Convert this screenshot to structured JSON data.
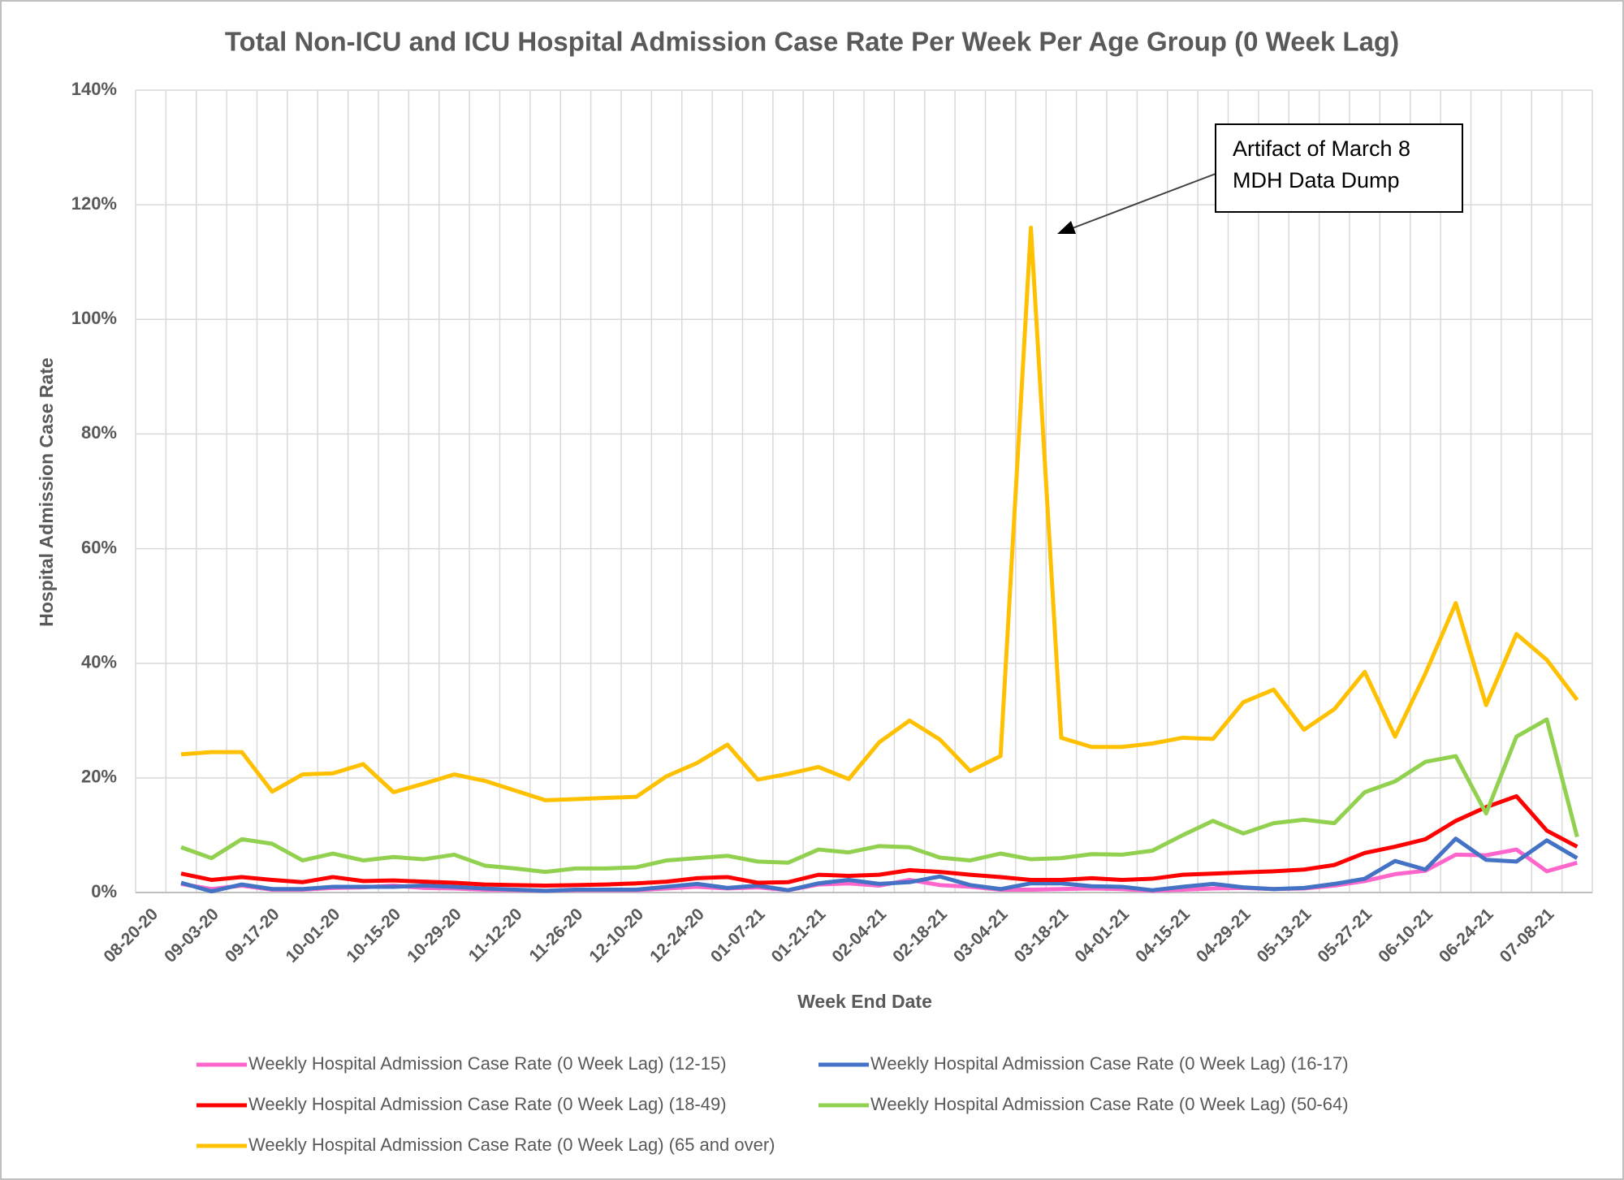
{
  "chart_data": {
    "type": "line",
    "title": "Total Non-ICU and ICU Hospital Admission Case Rate Per Week Per Age Group (0 Week Lag)",
    "xlabel": "Week End Date",
    "ylabel": "Hospital Admission Case Rate",
    "annotation": [
      "Artifact of March 8",
      "MDH Data Dump"
    ],
    "categories": [
      "08-20-20",
      null,
      "09-03-20",
      null,
      "09-17-20",
      null,
      "10-01-20",
      null,
      "10-15-20",
      null,
      "10-29-20",
      null,
      "11-12-20",
      null,
      "11-26-20",
      null,
      "12-10-20",
      null,
      "12-24-20",
      null,
      "01-07-21",
      null,
      "01-21-21",
      null,
      "02-04-21",
      null,
      "02-18-21",
      null,
      "03-04-21",
      null,
      "03-18-21",
      null,
      "04-01-21",
      null,
      "04-15-21",
      null,
      "04-29-21",
      null,
      "05-13-21",
      null,
      "05-27-21",
      null,
      "06-10-21",
      null,
      "06-24-21",
      null,
      "07-08-21",
      null
    ],
    "ylim": [
      0,
      140
    ],
    "yticks": [
      {
        "value": 0,
        "label": "0%"
      },
      {
        "value": 20,
        "label": "20%"
      },
      {
        "value": 40,
        "label": "40%"
      },
      {
        "value": 60,
        "label": "60%"
      },
      {
        "value": 80,
        "label": "80%"
      },
      {
        "value": 100,
        "label": "100%"
      },
      {
        "value": 120,
        "label": "120%"
      },
      {
        "value": 140,
        "label": "140%"
      }
    ],
    "grid": true,
    "legend": "bottom",
    "series": [
      {
        "name": "Weekly Hospital Admission Case Rate (0 Week Lag) (12-15)",
        "color": "#ff66cc",
        "values": [
          null,
          1.5,
          0.6,
          1.2,
          0.5,
          0.5,
          0.8,
          0.9,
          1.2,
          0.8,
          0.7,
          0.5,
          0.4,
          0.3,
          0.4,
          0.4,
          0.4,
          0.7,
          1,
          0.7,
          0.9,
          0.4,
          1.4,
          1.6,
          1.2,
          2.2,
          1.3,
          1,
          0.5,
          0.5,
          0.6,
          0.7,
          0.6,
          0.3,
          0.5,
          0.7,
          0.8,
          0.6,
          0.7,
          1.2,
          2,
          3.2,
          3.8,
          6.6,
          6.5,
          7.5,
          3.7,
          5.2
        ]
      },
      {
        "name": "Weekly Hospital Admission Case Rate (0 Week Lag) (16-17)",
        "color": "#4472c4",
        "values": [
          null,
          1.7,
          0.2,
          1.4,
          0.6,
          0.6,
          1,
          1,
          1,
          1.2,
          1,
          0.7,
          0.5,
          0.3,
          0.5,
          0.5,
          0.5,
          1,
          1.5,
          0.8,
          1.2,
          0.4,
          1.6,
          2.2,
          1.5,
          1.8,
          2.8,
          1.3,
          0.6,
          1.6,
          1.6,
          1.1,
          1,
          0.4,
          1,
          1.5,
          0.9,
          0.6,
          0.8,
          1.5,
          2.4,
          5.5,
          4,
          9.4,
          5.7,
          5.4,
          9.1,
          6
        ]
      },
      {
        "name": "Weekly Hospital Admission Case Rate (0 Week Lag) (18-49)",
        "color": "#ff0000",
        "values": [
          null,
          3.3,
          2.2,
          2.7,
          2.2,
          1.8,
          2.7,
          2,
          2.1,
          1.9,
          1.7,
          1.4,
          1.3,
          1.2,
          1.3,
          1.4,
          1.6,
          1.9,
          2.5,
          2.7,
          1.7,
          1.8,
          3.1,
          2.9,
          3.1,
          3.9,
          3.6,
          3.1,
          2.7,
          2.2,
          2.2,
          2.5,
          2.2,
          2.4,
          3.1,
          3.3,
          3.5,
          3.7,
          4,
          4.8,
          6.9,
          8,
          9.3,
          12.5,
          14.9,
          16.8,
          10.8,
          8
        ]
      },
      {
        "name": "Weekly Hospital Admission Case Rate (0 Week Lag) (50-64)",
        "color": "#92d050",
        "values": [
          null,
          7.9,
          6,
          9.3,
          8.5,
          5.6,
          6.8,
          5.6,
          6.2,
          5.8,
          6.6,
          4.7,
          4.2,
          3.6,
          4.2,
          4.2,
          4.4,
          5.6,
          6,
          6.4,
          5.4,
          5.2,
          7.5,
          7,
          8.1,
          7.9,
          6.1,
          5.6,
          6.8,
          5.8,
          6,
          6.7,
          6.6,
          7.3,
          10,
          12.5,
          10.3,
          12.1,
          12.7,
          12.1,
          17.5,
          19.4,
          22.8,
          23.8,
          13.8,
          27.2,
          30.2,
          9.7
        ]
      },
      {
        "name": "Weekly Hospital Admission Case Rate (0 Week Lag) (65 and over)",
        "color": "#ffc000",
        "values": [
          null,
          24.1,
          24.5,
          24.5,
          17.6,
          20.6,
          20.8,
          22.4,
          17.5,
          19,
          20.6,
          19.5,
          17.8,
          16.1,
          16.3,
          16.5,
          16.7,
          20.3,
          22.6,
          25.8,
          19.7,
          20.7,
          21.9,
          19.8,
          26.2,
          30,
          26.7,
          21.2,
          23.8,
          116,
          27,
          25.4,
          25.4,
          26,
          27,
          26.8,
          33.2,
          35.4,
          28.4,
          32,
          38.5,
          27.2,
          38.2,
          50.5,
          32.7,
          45.1,
          40.6,
          33.6
        ]
      }
    ]
  }
}
